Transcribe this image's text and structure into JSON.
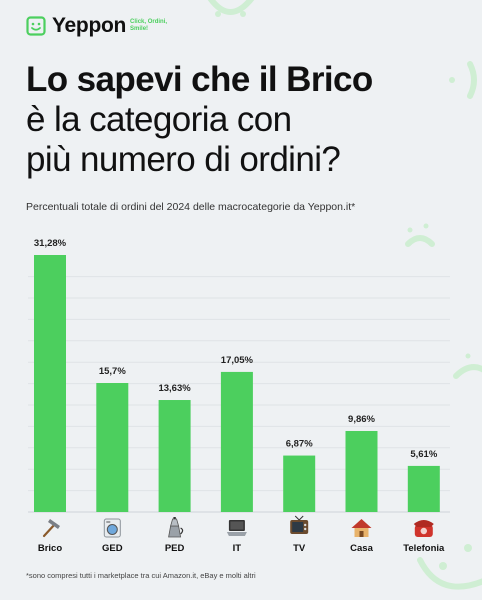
{
  "brand": {
    "name": "Yeppon",
    "tagline": "Click, Ordini, Smile!",
    "accent_color": "#4ccf5e"
  },
  "headline": {
    "line1": "Lo sapevi che il Brico",
    "line2": "è la categoria con",
    "line3": "più numero di ordini?"
  },
  "subtitle": "Percentuali totale di ordini del 2024 delle macrocategorie da Yeppon.it*",
  "footnote": "*sono compresi tutti i marketplace tra cui Amazon.it, eBay e molti altri",
  "chart_data": {
    "type": "bar",
    "categories": [
      "Brico",
      "GED",
      "PED",
      "IT",
      "TV",
      "Casa",
      "Telefonia"
    ],
    "values": [
      31.28,
      15.7,
      13.63,
      17.05,
      6.87,
      9.86,
      5.61
    ],
    "data_labels": [
      "31,28%",
      "15,7%",
      "13,63%",
      "17,05%",
      "6,87%",
      "9,86%",
      "5,61%"
    ],
    "icons": [
      "hammer-icon",
      "washing-machine-icon",
      "coffee-maker-icon",
      "laptop-icon",
      "tv-icon",
      "house-icon",
      "telephone-icon"
    ],
    "ylim": [
      0,
      31.28
    ],
    "grid": true,
    "bar_color": "#4ccf5e"
  }
}
